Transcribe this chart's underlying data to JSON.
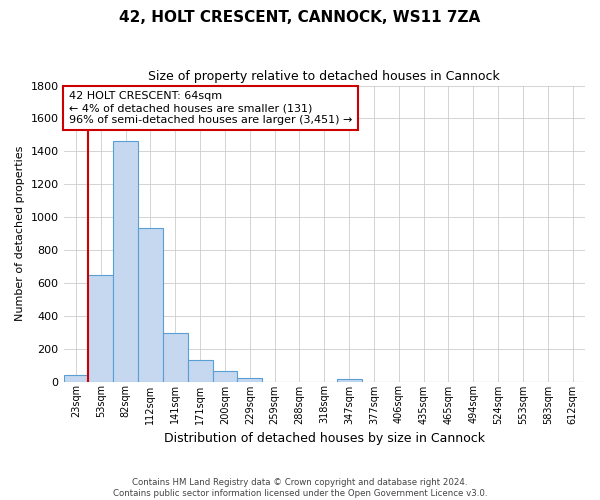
{
  "title": "42, HOLT CRESCENT, CANNOCK, WS11 7ZA",
  "subtitle": "Size of property relative to detached houses in Cannock",
  "xlabel": "Distribution of detached houses by size in Cannock",
  "ylabel": "Number of detached properties",
  "bar_labels": [
    "23sqm",
    "53sqm",
    "82sqm",
    "112sqm",
    "141sqm",
    "171sqm",
    "200sqm",
    "229sqm",
    "259sqm",
    "288sqm",
    "318sqm",
    "347sqm",
    "377sqm",
    "406sqm",
    "435sqm",
    "465sqm",
    "494sqm",
    "524sqm",
    "553sqm",
    "583sqm",
    "612sqm"
  ],
  "bar_values": [
    40,
    650,
    1460,
    935,
    295,
    130,
    65,
    22,
    0,
    0,
    0,
    15,
    0,
    0,
    0,
    0,
    0,
    0,
    0,
    0,
    0
  ],
  "bar_color": "#c5d8f0",
  "bar_edge_color": "#5a9fd4",
  "vline_x_idx": 1,
  "vline_color": "#cc0000",
  "ylim": [
    0,
    1800
  ],
  "yticks": [
    0,
    200,
    400,
    600,
    800,
    1000,
    1200,
    1400,
    1600,
    1800
  ],
  "annotation_title": "42 HOLT CRESCENT: 64sqm",
  "annotation_line1": "← 4% of detached houses are smaller (131)",
  "annotation_line2": "96% of semi-detached houses are larger (3,451) →",
  "annotation_box_color": "#ffffff",
  "annotation_box_edge": "#cc0000",
  "footer_line1": "Contains HM Land Registry data © Crown copyright and database right 2024.",
  "footer_line2": "Contains public sector information licensed under the Open Government Licence v3.0.",
  "background_color": "#ffffff",
  "grid_color": "#cccccc"
}
